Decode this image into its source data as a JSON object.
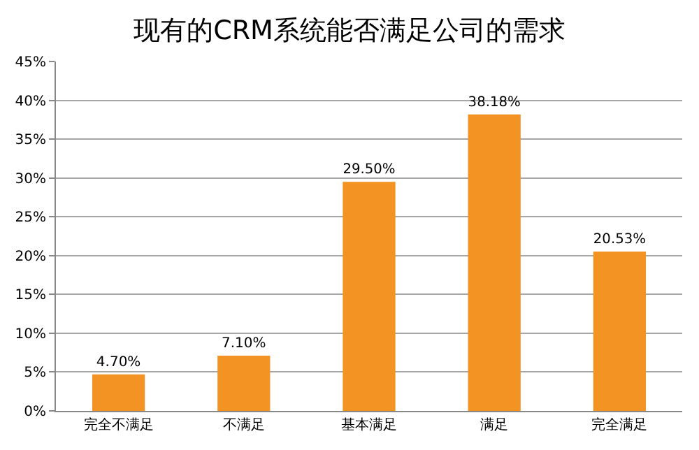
{
  "chart_data": {
    "type": "bar",
    "title": "现有的CRM系统能否满足公司的需求",
    "categories": [
      "完全不满足",
      "不满足",
      "基本满足",
      "满足",
      "完全满足"
    ],
    "values": [
      4.7,
      7.1,
      29.5,
      38.18,
      20.53
    ],
    "value_labels": [
      "4.70%",
      "7.10%",
      "29.50%",
      "38.18%",
      "20.53%"
    ],
    "color": "#f39324",
    "ylim": [
      0,
      45
    ],
    "yticks": [
      {
        "value": 0,
        "label": "0%"
      },
      {
        "value": 5,
        "label": "5%"
      },
      {
        "value": 10,
        "label": "10%"
      },
      {
        "value": 15,
        "label": "15%"
      },
      {
        "value": 20,
        "label": "20%"
      },
      {
        "value": 25,
        "label": "25%"
      },
      {
        "value": 30,
        "label": "30%"
      },
      {
        "value": 35,
        "label": "35%"
      },
      {
        "value": 40,
        "label": "40%"
      },
      {
        "value": 45,
        "label": "45%"
      }
    ],
    "grid": "y",
    "legend": false
  }
}
